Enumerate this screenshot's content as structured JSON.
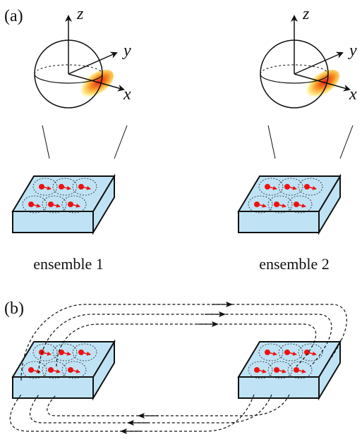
{
  "panel_a": {
    "label": "(a)",
    "axes": {
      "z": "z",
      "y": "y",
      "x": "x"
    },
    "ensembles": [
      "ensemble 1",
      "ensemble 2"
    ]
  },
  "panel_b": {
    "label": "(b)"
  }
}
